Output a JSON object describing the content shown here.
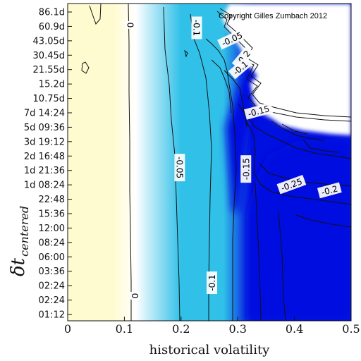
{
  "chart_data": {
    "type": "heatmap",
    "xlabel": "historical volatility",
    "ylabel_main": "δt",
    "ylabel_sub": "centered",
    "copyright": "Copyright Gilles Zumbach 2012",
    "xlim": [
      0,
      0.5
    ],
    "x_ticks": [
      "0",
      "0.1",
      "0.2",
      "0.3",
      "0.4",
      "0.5"
    ],
    "y_ticks": [
      "01:12",
      "02:24",
      "02:24",
      "03:36",
      "06:00",
      "08:24",
      "12:00",
      "15:36",
      "22:48",
      "1d 08:24",
      "1d 21:36",
      "2d 16:48",
      "3d 19:12",
      "5d 09:36",
      "7d 14:24",
      "10.75d",
      "15.2d",
      "21.55d",
      "30.45d",
      "43.05d",
      "60.9d",
      "86.1d"
    ],
    "colormap": {
      "positive": "#fffbd0",
      "zero": "#ffffff",
      "mid": "#30c0e8",
      "negative": "#0010e0",
      "no_data": "#ffffff"
    },
    "contour_labels": [
      {
        "text": "0",
        "x": 0.11,
        "y_index": 20.1,
        "rotate": 90
      },
      {
        "text": "0",
        "x": 0.118,
        "y_index": 1.3,
        "rotate": 90
      },
      {
        "text": "-0.05",
        "x": 0.197,
        "y_index": 10.2,
        "rotate": 90
      },
      {
        "text": "-0.1",
        "x": 0.227,
        "y_index": 19.9,
        "rotate": 90
      },
      {
        "text": "-0.05",
        "x": 0.29,
        "y_index": 19.1,
        "rotate": -25
      },
      {
        "text": "-0.2",
        "x": 0.31,
        "y_index": 17.8,
        "rotate": -50
      },
      {
        "text": "-0.1",
        "x": 0.305,
        "y_index": 17.1,
        "rotate": -40
      },
      {
        "text": "-0.15",
        "x": 0.337,
        "y_index": 14.1,
        "rotate": -15
      },
      {
        "text": "-0.15",
        "x": 0.315,
        "y_index": 10.1,
        "rotate": -90
      },
      {
        "text": "-0.25",
        "x": 0.395,
        "y_index": 9.0,
        "rotate": -20
      },
      {
        "text": "-0.2",
        "x": 0.462,
        "y_index": 8.6,
        "rotate": -15
      },
      {
        "text": "-0.1",
        "x": 0.255,
        "y_index": 2.2,
        "rotate": -90
      }
    ]
  }
}
